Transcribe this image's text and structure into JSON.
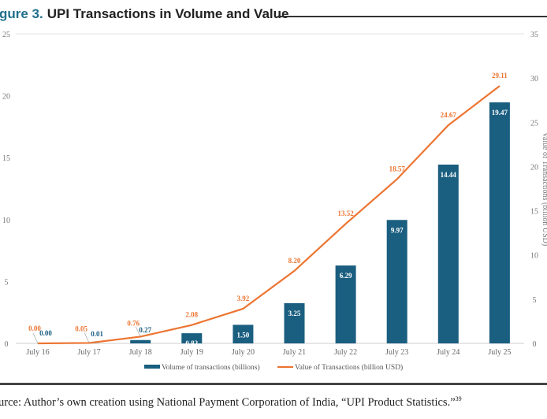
{
  "figure": {
    "label": "gure 3.",
    "title": "UPI Transactions in Volume and Value",
    "source": "urce: Author’s own creation using National Payment Corporation of India, “UPI Product Statistics.”",
    "source_note": "39"
  },
  "chart_data": {
    "type": "bar+line",
    "categories": [
      "July 16",
      "July 17",
      "July 18",
      "July 19",
      "July 20",
      "July 21",
      "July 22",
      "July 23",
      "July 24",
      "July 25"
    ],
    "series": [
      {
        "name": "Volume of transactions (billions)",
        "type": "bar",
        "axis": "left",
        "color": "#1a5e80",
        "values": [
          0.0,
          0.01,
          0.27,
          0.82,
          1.5,
          3.25,
          6.29,
          9.97,
          14.44,
          19.47
        ],
        "labels": [
          "0.00",
          "0.01",
          "0.27",
          "0.82",
          "1.50",
          "3.25",
          "6.29",
          "9.97",
          "14.44",
          "19.47"
        ]
      },
      {
        "name": "Value of Transactions (billion USD)",
        "type": "line",
        "axis": "right",
        "color": "#ec7532",
        "values": [
          0.0,
          0.05,
          0.76,
          2.08,
          3.92,
          8.2,
          13.52,
          18.57,
          24.67,
          29.11
        ],
        "labels": [
          "0.00",
          "0.05",
          "0.76",
          "2.08",
          "3.92",
          "8.20",
          "13.52",
          "18.57",
          "24.67",
          "29.11"
        ]
      }
    ],
    "y_left": {
      "ylim": [
        0,
        25
      ],
      "ticks": [
        "0",
        "5",
        "10",
        "15",
        "20",
        "25"
      ]
    },
    "y_right": {
      "ylim": [
        0,
        35
      ],
      "ticks": [
        "0",
        "5",
        "10",
        "15",
        "20",
        "25",
        "30",
        "35"
      ],
      "label": "Value of Transactions (billion USD)"
    },
    "legend": "bottom",
    "grid": false
  }
}
